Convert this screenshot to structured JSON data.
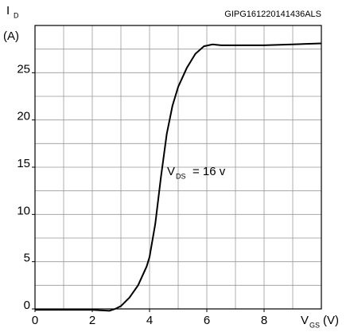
{
  "chart_data": {
    "type": "line",
    "watermark": "GIPG161220141436ALS",
    "ylabel": "I",
    "ylabel_sub": "D",
    "ylabel_unit": "(A)",
    "xlabel": "V",
    "xlabel_sub": "GS",
    "xlabel_unit": "(V)",
    "annotation": {
      "text": "V",
      "sub": "DS",
      "rest": "= 16 v",
      "x": 4.5,
      "y": 14.5
    },
    "x": [
      0,
      1,
      2,
      2.6,
      2.8,
      3.0,
      3.3,
      3.6,
      3.9,
      4.0,
      4.2,
      4.4,
      4.6,
      4.8,
      5.0,
      5.3,
      5.6,
      5.9,
      6.2,
      6.5,
      7,
      8,
      9,
      10
    ],
    "series": [
      {
        "name": "ID",
        "color": "#000000",
        "values": [
          -0.1,
          -0.1,
          -0.1,
          -0.2,
          0,
          0.3,
          1.2,
          2.5,
          4.5,
          5.5,
          9,
          14,
          18.5,
          21.5,
          23.5,
          25.5,
          27,
          27.8,
          28.0,
          27.9,
          27.9,
          27.9,
          28.0,
          28.1
        ]
      }
    ],
    "xlim": [
      0,
      10
    ],
    "xticks": [
      0,
      2,
      4,
      6,
      8
    ],
    "xgrid": [
      1,
      2,
      3,
      4,
      5,
      6,
      7,
      8,
      9
    ],
    "ylim": [
      0,
      30
    ],
    "yticks": [
      0,
      5,
      10,
      15,
      20,
      25
    ],
    "ygrid": [
      2.5,
      5,
      7.5,
      10,
      12.5,
      15,
      17.5,
      20,
      22.5,
      25,
      27.5
    ],
    "grid": true
  }
}
